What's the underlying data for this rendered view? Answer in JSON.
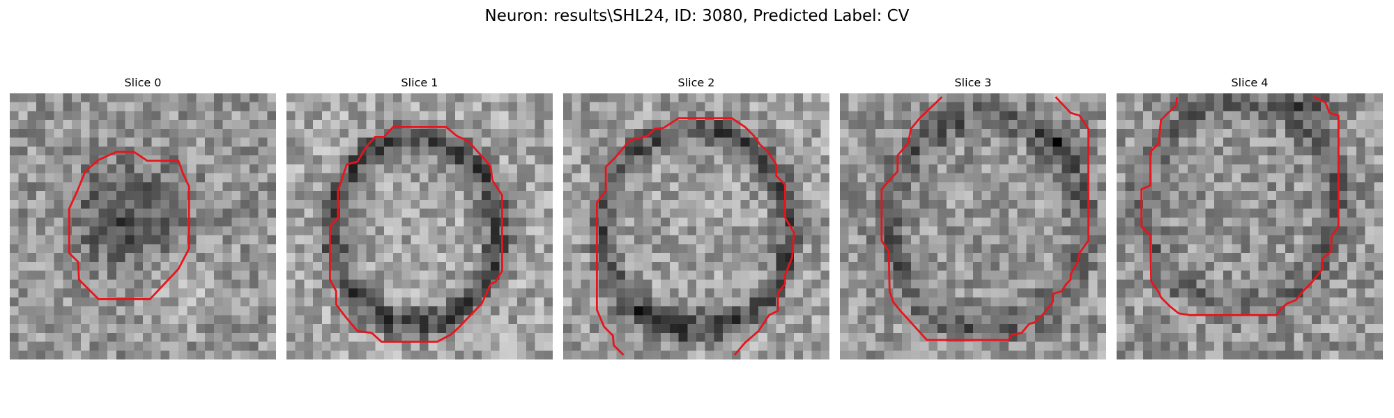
{
  "figure": {
    "title": "Neuron: results\\SHL24, ID: 3080, Predicted Label: CV",
    "contour_color": "#e8141c",
    "colormap": "gray"
  },
  "slices": [
    {
      "title": "Slice 0"
    },
    {
      "title": "Slice 1"
    },
    {
      "title": "Slice 2"
    },
    {
      "title": "Slice 3"
    },
    {
      "title": "Slice 4"
    }
  ]
}
